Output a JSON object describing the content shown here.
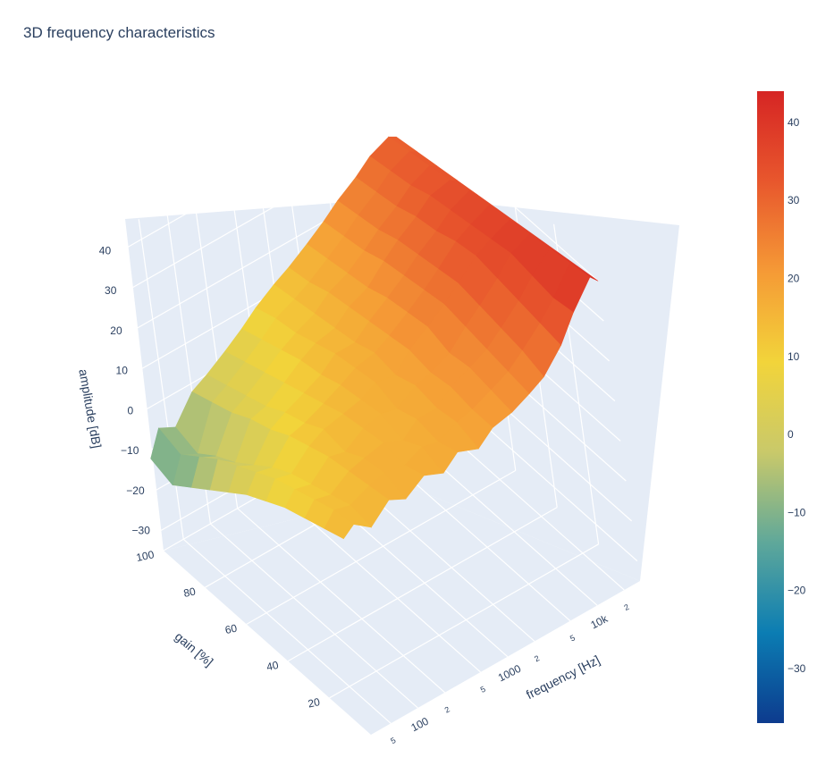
{
  "chart_data": {
    "type": "surface",
    "title": "3D frequency characteristics",
    "x_axis": {
      "label": "frequency [Hz]",
      "scale": "log",
      "range": [
        30,
        30000
      ],
      "tick_labels": [
        "5",
        "100",
        "2",
        "5",
        "1000",
        "2",
        "5",
        "10k",
        "2"
      ]
    },
    "y_axis": {
      "label": "gain [%]",
      "range": [
        0,
        100
      ],
      "tick_labels": [
        "20",
        "40",
        "60",
        "80",
        "100"
      ]
    },
    "z_axis": {
      "label": "amplitude [dB]",
      "range": [
        -35,
        45
      ],
      "tick_labels": [
        "-30",
        "-20",
        "-10",
        "0",
        "10",
        "20",
        "30",
        "40"
      ]
    },
    "colorbar": {
      "range": [
        -37,
        44
      ],
      "tick_labels": [
        "-30",
        "-20",
        "-10",
        "0",
        "10",
        "20",
        "30",
        "40"
      ],
      "colorscale": [
        "#0d3b8e",
        "#0b7db3",
        "#5fa89a",
        "#c9c96a",
        "#f2d43a",
        "#f59a36",
        "#e8572d",
        "#d62524"
      ]
    },
    "grid": true,
    "surface": {
      "gain_values": [
        0,
        10,
        20,
        30,
        40,
        50,
        60,
        70,
        80,
        90,
        100
      ],
      "frequency_values": [
        30,
        40,
        60,
        100,
        150,
        250,
        400,
        600,
        1000,
        1500,
        2500,
        4000,
        6000,
        10000,
        15000,
        25000,
        30000
      ],
      "amplitude_dB": [
        [
          14,
          16,
          13,
          17,
          15,
          18,
          16,
          19,
          17,
          20,
          21,
          23,
          25,
          30,
          36,
          42,
          40
        ],
        [
          12,
          15,
          14,
          16,
          17,
          16,
          18,
          17,
          19,
          20,
          22,
          24,
          27,
          31,
          35,
          41,
          39
        ],
        [
          10,
          13,
          12,
          15,
          16,
          17,
          15,
          18,
          18,
          21,
          23,
          25,
          28,
          32,
          36,
          40,
          38
        ],
        [
          8,
          11,
          10,
          14,
          13,
          16,
          17,
          16,
          19,
          20,
          22,
          26,
          29,
          33,
          37,
          39,
          37
        ],
        [
          5,
          9,
          8,
          12,
          14,
          15,
          16,
          18,
          17,
          21,
          24,
          27,
          30,
          34,
          36,
          38,
          36
        ],
        [
          2,
          6,
          5,
          10,
          11,
          13,
          15,
          17,
          18,
          20,
          23,
          26,
          29,
          33,
          35,
          37,
          35
        ],
        [
          -2,
          3,
          1,
          7,
          9,
          11,
          13,
          16,
          16,
          19,
          22,
          25,
          28,
          31,
          34,
          36,
          34
        ],
        [
          -6,
          0,
          -3,
          5,
          6,
          9,
          12,
          14,
          15,
          18,
          20,
          24,
          27,
          30,
          33,
          34,
          33
        ],
        [
          -10,
          -4,
          -6,
          2,
          4,
          7,
          10,
          12,
          14,
          17,
          19,
          22,
          25,
          28,
          31,
          33,
          32
        ],
        [
          -14,
          -8,
          -10,
          0,
          2,
          5,
          8,
          11,
          13,
          15,
          18,
          21,
          24,
          27,
          30,
          32,
          31
        ],
        [
          -12,
          -6,
          -8,
          -2,
          0,
          3,
          6,
          9,
          12,
          14,
          17,
          20,
          23,
          26,
          29,
          31,
          30
        ]
      ]
    }
  }
}
